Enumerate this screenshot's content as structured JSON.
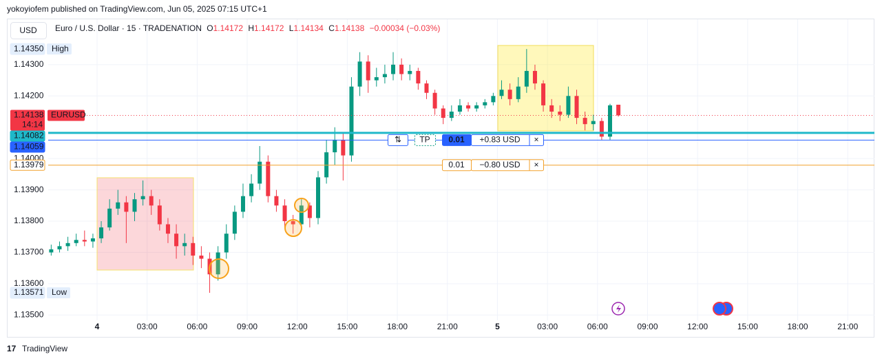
{
  "header": {
    "published": "yokoyiofem published on TradingView.com, Jun 05, 2025 07:15 UTC+1",
    "currency": "USD",
    "brand": "TradingView"
  },
  "chart_data": {
    "type": "candlestick",
    "legend": {
      "symbol": "Euro / U.S. Dollar · 15 · TRADENATION",
      "o_label": "O",
      "open": 1.14172,
      "h_label": "H",
      "high": 1.14172,
      "l_label": "L",
      "low": 1.14134,
      "c_label": "C",
      "close": 1.14138,
      "change": "−0.00034",
      "change_pct": "(−0.03%)"
    },
    "up_color": "#089981",
    "down_color": "#f23645",
    "xlim": [
      -2.93,
      46.6
    ],
    "xticks": [
      {
        "value": 0,
        "label": "4"
      },
      {
        "value": 3,
        "label": "03:00"
      },
      {
        "value": 6,
        "label": "06:00"
      },
      {
        "value": 9,
        "label": "09:00"
      },
      {
        "value": 12,
        "label": "12:00"
      },
      {
        "value": 15,
        "label": "15:00"
      },
      {
        "value": 18,
        "label": "18:00"
      },
      {
        "value": 21,
        "label": "21:00"
      },
      {
        "value": 24,
        "label": "5"
      },
      {
        "value": 27,
        "label": "03:00"
      },
      {
        "value": 30,
        "label": "06:00"
      },
      {
        "value": 33,
        "label": "09:00"
      },
      {
        "value": 36,
        "label": "12:00"
      },
      {
        "value": 39,
        "label": "15:00"
      },
      {
        "value": 42,
        "label": "18:00"
      },
      {
        "value": 45,
        "label": "21:00"
      }
    ],
    "ylim": [
      1.13439,
      1.14445
    ],
    "yticks": [
      {
        "value": 1.135,
        "label": "1.13500"
      },
      {
        "value": 1.136,
        "label": "1.13600"
      },
      {
        "value": 1.137,
        "label": "1.13700"
      },
      {
        "value": 1.138,
        "label": "1.13800"
      },
      {
        "value": 1.139,
        "label": "1.13900"
      },
      {
        "value": 1.14,
        "label": "1.14000"
      },
      {
        "value": 1.142,
        "label": "1.14200"
      },
      {
        "value": 1.143,
        "label": "1.14300"
      }
    ],
    "grid": true,
    "x": [
      -2.75,
      -2.25,
      -1.75,
      -1.25,
      -0.75,
      -0.25,
      0.25,
      0.75,
      1.25,
      1.75,
      2.25,
      2.75,
      3.25,
      3.75,
      4.25,
      4.75,
      5.25,
      5.75,
      6.25,
      6.75,
      7.25,
      7.75,
      8.25,
      8.75,
      9.25,
      9.75,
      10.25,
      10.75,
      11.25,
      11.75,
      12.25,
      12.75,
      13.25,
      13.75,
      14.25,
      14.75,
      15.25,
      15.75,
      16.25,
      16.75,
      17.25,
      17.75,
      18.25,
      18.75,
      19.25,
      19.75,
      20.25,
      20.75,
      21.25,
      21.75,
      22.25,
      22.75,
      23.25,
      23.75,
      24.25,
      24.75,
      25.25,
      25.75,
      26.25,
      26.75,
      27.25,
      27.75,
      28.25,
      28.75,
      29.25,
      29.75,
      30.25,
      30.75,
      31.25
    ],
    "candles": [
      [
        1.137,
        1.13725,
        1.1369,
        1.1371
      ],
      [
        1.1371,
        1.13735,
        1.137,
        1.1372
      ],
      [
        1.1372,
        1.1375,
        1.13705,
        1.1373
      ],
      [
        1.1373,
        1.1376,
        1.1372,
        1.1374
      ],
      [
        1.1374,
        1.1377,
        1.1372,
        1.13735
      ],
      [
        1.13735,
        1.1376,
        1.13715,
        1.13745
      ],
      [
        1.13745,
        1.138,
        1.1373,
        1.1378
      ],
      [
        1.1378,
        1.1387,
        1.1377,
        1.1384
      ],
      [
        1.1384,
        1.139,
        1.1382,
        1.1386
      ],
      [
        1.1386,
        1.1388,
        1.1373,
        1.1383
      ],
      [
        1.1383,
        1.1389,
        1.138,
        1.1387
      ],
      [
        1.1387,
        1.1393,
        1.1385,
        1.1388
      ],
      [
        1.1388,
        1.139,
        1.1382,
        1.1385
      ],
      [
        1.1385,
        1.1387,
        1.1377,
        1.1379
      ],
      [
        1.1379,
        1.1381,
        1.1373,
        1.1376
      ],
      [
        1.1376,
        1.1379,
        1.1368,
        1.1372
      ],
      [
        1.1372,
        1.1376,
        1.1369,
        1.1373
      ],
      [
        1.1373,
        1.1375,
        1.1366,
        1.1369
      ],
      [
        1.1369,
        1.1372,
        1.1365,
        1.1368
      ],
      [
        1.1368,
        1.137,
        1.13571,
        1.1363
      ],
      [
        1.1363,
        1.1372,
        1.1361,
        1.137
      ],
      [
        1.137,
        1.1379,
        1.1368,
        1.1376
      ],
      [
        1.1376,
        1.1385,
        1.1374,
        1.1383
      ],
      [
        1.1383,
        1.1392,
        1.1381,
        1.1388
      ],
      [
        1.1388,
        1.1395,
        1.1386,
        1.1392
      ],
      [
        1.1392,
        1.1404,
        1.139,
        1.1399
      ],
      [
        1.1399,
        1.1401,
        1.1386,
        1.1388
      ],
      [
        1.1388,
        1.139,
        1.1383,
        1.1385
      ],
      [
        1.1385,
        1.1387,
        1.1378,
        1.138
      ],
      [
        1.138,
        1.1382,
        1.1376,
        1.1379
      ],
      [
        1.1379,
        1.1387,
        1.1377,
        1.1385
      ],
      [
        1.1385,
        1.1386,
        1.1378,
        1.1381
      ],
      [
        1.1381,
        1.1396,
        1.1379,
        1.1394
      ],
      [
        1.1394,
        1.1406,
        1.1392,
        1.1402
      ],
      [
        1.1402,
        1.141,
        1.1398,
        1.1406
      ],
      [
        1.1406,
        1.1408,
        1.1393,
        1.1401
      ],
      [
        1.1401,
        1.1426,
        1.1399,
        1.1423
      ],
      [
        1.1423,
        1.1434,
        1.142,
        1.1431
      ],
      [
        1.1431,
        1.1433,
        1.1421,
        1.1425
      ],
      [
        1.1425,
        1.1429,
        1.1423,
        1.1426
      ],
      [
        1.1426,
        1.143,
        1.1424,
        1.1427
      ],
      [
        1.1427,
        1.1434,
        1.1425,
        1.143
      ],
      [
        1.143,
        1.1432,
        1.1425,
        1.1427
      ],
      [
        1.1427,
        1.143,
        1.1425,
        1.1428
      ],
      [
        1.1428,
        1.1429,
        1.1422,
        1.1424
      ],
      [
        1.1424,
        1.1425,
        1.1419,
        1.1421
      ],
      [
        1.1421,
        1.1422,
        1.1414,
        1.1416
      ],
      [
        1.1416,
        1.1417,
        1.1411,
        1.1413
      ],
      [
        1.1413,
        1.1417,
        1.1412,
        1.1415
      ],
      [
        1.1415,
        1.1419,
        1.1414,
        1.1417
      ],
      [
        1.1417,
        1.1418,
        1.1415,
        1.1416
      ],
      [
        1.1416,
        1.1418,
        1.1415,
        1.1417
      ],
      [
        1.1417,
        1.1419,
        1.1416,
        1.1418
      ],
      [
        1.1418,
        1.1421,
        1.1417,
        1.142
      ],
      [
        1.142,
        1.1425,
        1.1419,
        1.1422
      ],
      [
        1.1422,
        1.1424,
        1.1417,
        1.1419
      ],
      [
        1.1419,
        1.1426,
        1.1418,
        1.1423
      ],
      [
        1.1423,
        1.1435,
        1.1421,
        1.1428
      ],
      [
        1.1428,
        1.143,
        1.1422,
        1.1424
      ],
      [
        1.1424,
        1.1425,
        1.1415,
        1.1417
      ],
      [
        1.1417,
        1.1419,
        1.1413,
        1.1415
      ],
      [
        1.1415,
        1.1417,
        1.1412,
        1.1414
      ],
      [
        1.1414,
        1.1423,
        1.1413,
        1.142
      ],
      [
        1.142,
        1.1422,
        1.1411,
        1.1413
      ],
      [
        1.1413,
        1.1415,
        1.1409,
        1.1411
      ],
      [
        1.1411,
        1.1414,
        1.1409,
        1.1412
      ],
      [
        1.1412,
        1.1413,
        1.1406,
        1.1407
      ],
      [
        1.1407,
        1.14175,
        1.1406,
        1.1417
      ],
      [
        1.14172,
        1.14172,
        1.14134,
        1.14138
      ]
    ],
    "high_tag": {
      "value": 1.1435,
      "label": "1.14350"
    },
    "high_text": "High",
    "low_tag": 1.13571,
    "low_text": "Low",
    "last_price": 1.14138,
    "last_color": "#f23645",
    "symbol_tag": "EURUSD",
    "countdown": "14:14",
    "lines": [
      {
        "value": 1.14082,
        "color": "#1fb8c9"
      },
      {
        "value": 1.14059,
        "color": "#2962ff"
      },
      {
        "value": 1.13979,
        "color": "#f2a12b"
      }
    ],
    "orders": [
      {
        "swap": "⇅",
        "tp": "TP",
        "qty": "0.01",
        "pnl": "+0.83 USD",
        "close": "×"
      },
      {
        "qty": "0.01",
        "pnl": "−0.80 USD",
        "close": "×"
      }
    ]
  }
}
